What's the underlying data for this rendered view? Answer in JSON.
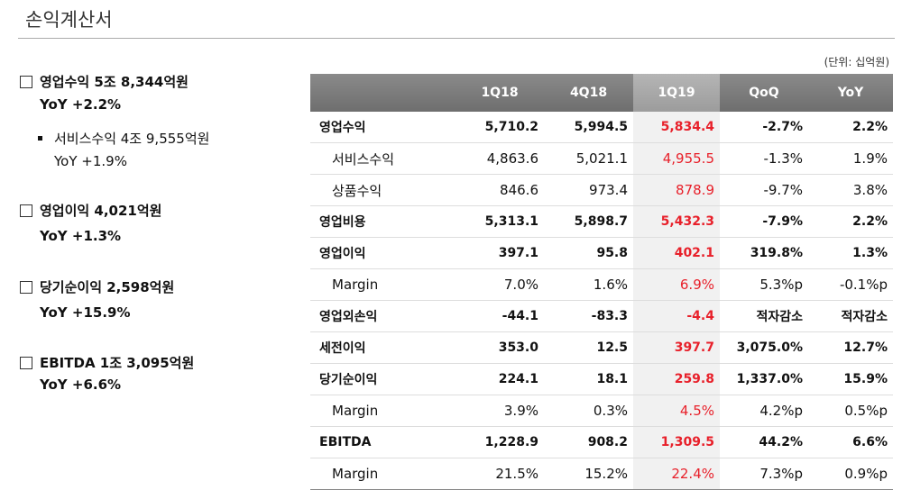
{
  "header": {
    "title": "손익계산서"
  },
  "summary": [
    {
      "headline": "영업수익 5조 8,344억원",
      "yoy": "YoY +2.2%"
    },
    {
      "headline": "서비스수익 4조 9,555억원",
      "yoy": "YoY +1.9%"
    },
    {
      "headline": "영업이익 4,021억원",
      "yoy": "YoY +1.3%"
    },
    {
      "headline": "당기순이익 2,598억원",
      "yoy": "YoY +15.9%"
    },
    {
      "headline": "EBITDA 1조 3,095억원",
      "yoy": "YoY +6.6%"
    }
  ],
  "table": {
    "unit": "(단위: 십억원)",
    "columns": [
      "1Q18",
      "4Q18",
      "1Q19",
      "QoQ",
      "YoY"
    ],
    "rows": [
      [
        "영업수익",
        "5,710.2",
        "5,994.5",
        "5,834.4",
        "-2.7%",
        "2.2%"
      ],
      [
        "서비스수익",
        "4,863.6",
        "5,021.1",
        "4,955.5",
        "-1.3%",
        "1.9%"
      ],
      [
        "상품수익",
        "846.6",
        "973.4",
        "878.9",
        "-9.7%",
        "3.8%"
      ],
      [
        "영업비용",
        "5,313.1",
        "5,898.7",
        "5,432.3",
        "-7.9%",
        "2.2%"
      ],
      [
        "영업이익",
        "397.1",
        "95.8",
        "402.1",
        "319.8%",
        "1.3%"
      ],
      [
        "Margin",
        "7.0%",
        "1.6%",
        "6.9%",
        "5.3%p",
        "-0.1%p"
      ],
      [
        "영업외손익",
        "-44.1",
        "-83.3",
        "-4.4",
        "적자감소",
        "적자감소"
      ],
      [
        "세전이익",
        "353.0",
        "12.5",
        "397.7",
        "3,075.0%",
        "12.7%"
      ],
      [
        "당기순이익",
        "224.1",
        "18.1",
        "259.8",
        "1,337.0%",
        "15.9%"
      ],
      [
        "Margin",
        "3.9%",
        "0.3%",
        "4.5%",
        "4.2%p",
        "0.5%p"
      ],
      [
        "EBITDA",
        "1,228.9",
        "908.2",
        "1,309.5",
        "44.2%",
        "6.6%"
      ],
      [
        "Margin",
        "21.5%",
        "15.2%",
        "22.4%",
        "7.3%p",
        "0.9%p"
      ]
    ]
  }
}
